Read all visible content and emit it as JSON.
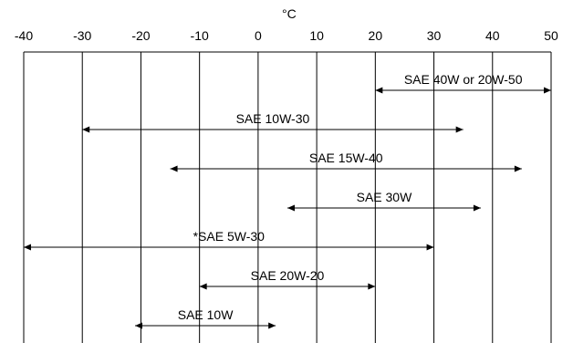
{
  "chart_data": {
    "type": "range",
    "title": "",
    "xlabel": "°C",
    "ylabel": "",
    "xlim": [
      -40,
      50
    ],
    "x_ticks": [
      -40,
      -30,
      -20,
      -10,
      0,
      10,
      20,
      30,
      40,
      50
    ],
    "grid": true,
    "ranges": [
      {
        "label": "SAE 40W or 20W-50",
        "from": 20,
        "to": 50
      },
      {
        "label": "SAE 10W-30",
        "from": -30,
        "to": 35
      },
      {
        "label": "SAE 15W-40",
        "from": -15,
        "to": 45
      },
      {
        "label": "SAE 30W",
        "from": 5,
        "to": 38
      },
      {
        "label": "*SAE 5W-30",
        "from": -40,
        "to": 30
      },
      {
        "label": "SAE 20W-20",
        "from": -10,
        "to": 20
      },
      {
        "label": "SAE 10W",
        "from": -21,
        "to": 3
      }
    ]
  }
}
